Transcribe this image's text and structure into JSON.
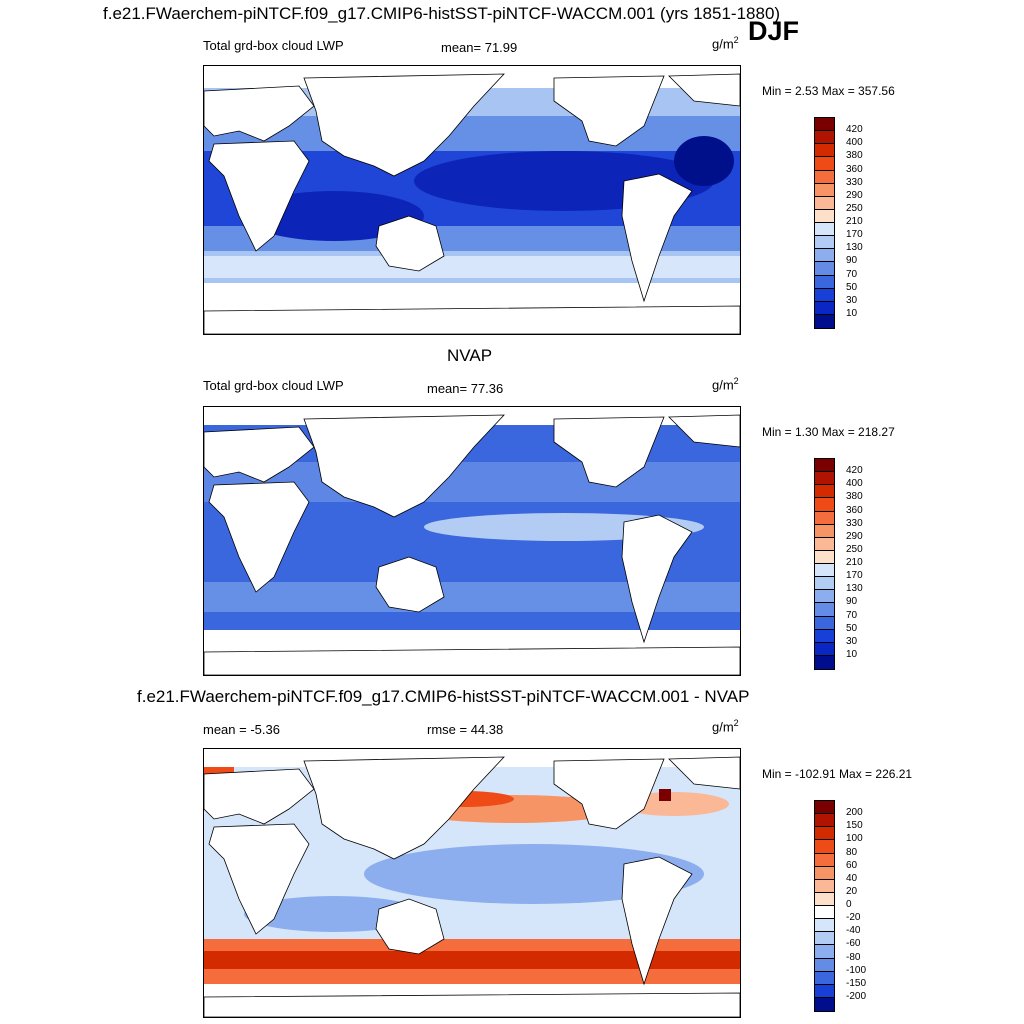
{
  "figure": {
    "title_top": "f.e21.FWaerchem-piNTCF.f09_g17.CMIP6-histSST-piNTCF-WACCM.001 (yrs 1851-1880)",
    "season": "DJF",
    "title_mid": "NVAP",
    "title_bottom": "f.e21.FWaerchem-piNTCF.f09_g17.CMIP6-histSST-piNTCF-WACCM.001 - NVAP"
  },
  "panels": [
    {
      "id": "model",
      "left_label": "Total grd-box cloud LWP",
      "center_label": "mean=  71.99",
      "units": "g/m",
      "units_sup": "2",
      "minmax": "Min =   2.53 Max = 357.56",
      "colorbar": {
        "labels": [
          "420",
          "400",
          "380",
          "360",
          "330",
          "290",
          "250",
          "210",
          "170",
          "130",
          "90",
          "70",
          "50",
          "30",
          "10"
        ],
        "colors": [
          "#7a0000",
          "#b01400",
          "#d42a00",
          "#ee4b16",
          "#f56d3c",
          "#f79466",
          "#fab896",
          "#fde0c9",
          "#d5e6fa",
          "#b3ccf4",
          "#8caeee",
          "#648ce6",
          "#3a66de",
          "#1840d8",
          "#0a26c4",
          "#000d8c"
        ]
      }
    },
    {
      "id": "obs",
      "left_label": "Total grd-box cloud LWP",
      "center_label": "mean=  77.36",
      "units": "g/m",
      "units_sup": "2",
      "minmax": "Min =   1.30 Max = 218.27",
      "colorbar": {
        "labels": [
          "420",
          "400",
          "380",
          "360",
          "330",
          "290",
          "250",
          "210",
          "170",
          "130",
          "90",
          "70",
          "50",
          "30",
          "10"
        ],
        "colors": [
          "#7a0000",
          "#b01400",
          "#d42a00",
          "#ee4b16",
          "#f56d3c",
          "#f79466",
          "#fab896",
          "#fde0c9",
          "#d5e6fa",
          "#b3ccf4",
          "#8caeee",
          "#648ce6",
          "#3a66de",
          "#1840d8",
          "#0a26c4",
          "#000d8c"
        ]
      }
    },
    {
      "id": "diff",
      "left_label": "mean =  -5.36",
      "center_label": "rmse =  44.38",
      "units": "g/m",
      "units_sup": "2",
      "minmax": "Min = -102.91 Max = 226.21",
      "colorbar": {
        "labels": [
          "200",
          "150",
          "100",
          "80",
          "60",
          "40",
          "20",
          "0",
          "-20",
          "-40",
          "-60",
          "-80",
          "-100",
          "-150",
          "-200"
        ],
        "colors": [
          "#7a0000",
          "#b01400",
          "#d42a00",
          "#ee4b16",
          "#f56d3c",
          "#f79466",
          "#fab896",
          "#fde0c9",
          "#ffffff",
          "#d5e6fa",
          "#b3ccf4",
          "#8caeee",
          "#648ce6",
          "#3a66de",
          "#1840d8",
          "#000d8c"
        ]
      }
    }
  ]
}
